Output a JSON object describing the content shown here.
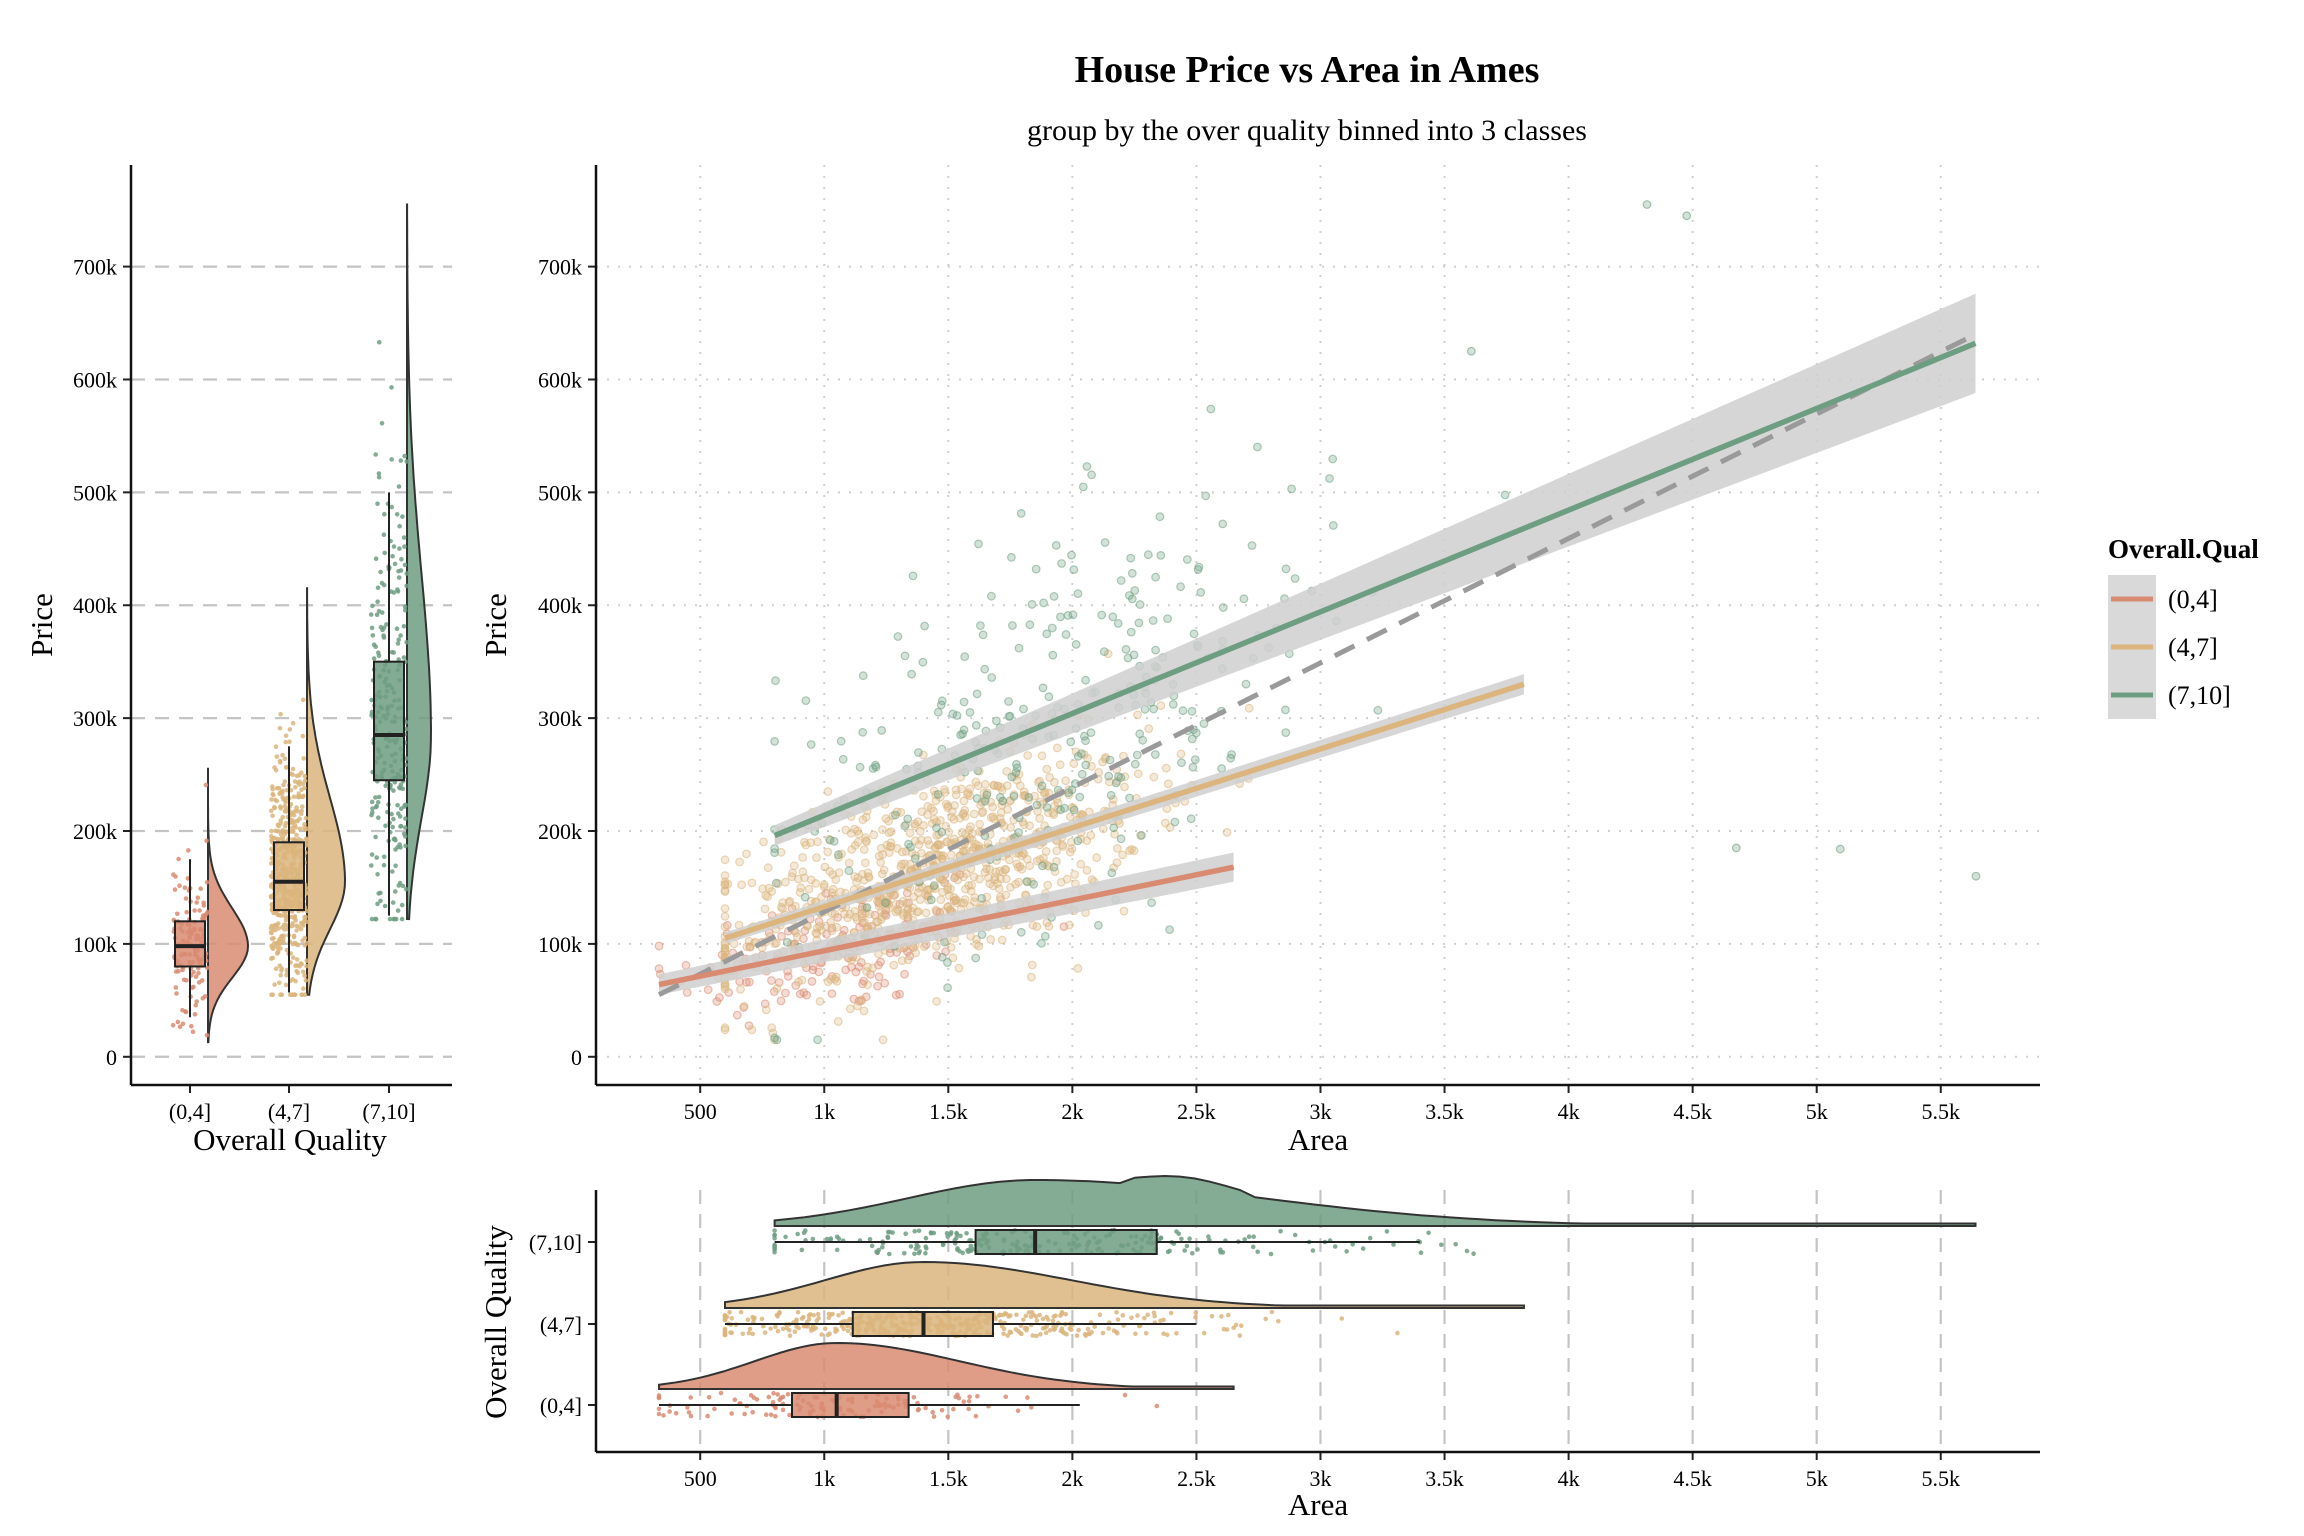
{
  "title": "House Price vs Area in Ames",
  "subtitle": "group by the over quality binned into 3 classes",
  "colors": {
    "(0,4]": "#d98b72",
    "(4,7]": "#dbb57d",
    "(7,10]": "#6e9e82",
    "overall_fit": "#9a9a9a",
    "ribbon": "#cfcfcf"
  },
  "legend": {
    "title": "Overall.Qual",
    "position": "right",
    "items": [
      "(0,4]",
      "(4,7]",
      "(7,10]"
    ]
  },
  "chart_data": [
    {
      "type": "scatter",
      "panel": "main",
      "xlabel": "Area",
      "ylabel": "Price",
      "xlim": [
        80,
        5900
      ],
      "ylim": [
        -25000,
        790000
      ],
      "x_ticks": [
        500,
        1000,
        1500,
        2000,
        2500,
        3000,
        3500,
        4000,
        4500,
        5000,
        5500
      ],
      "x_tick_labels": [
        "500",
        "1k",
        "1.5k",
        "2k",
        "2.5k",
        "3k",
        "3.5k",
        "4k",
        "4.5k",
        "5k",
        "5.5k"
      ],
      "y_ticks": [
        0,
        100000,
        200000,
        300000,
        400000,
        500000,
        600000,
        700000
      ],
      "y_tick_labels": [
        "0",
        "100k",
        "200k",
        "300k",
        "400k",
        "500k",
        "600k",
        "700k"
      ],
      "grid": true,
      "series": [
        {
          "name": "(0,4]",
          "cloud": {
            "x_center": 1050,
            "x_sd": 330,
            "y_center": 105000,
            "y_sd": 30000,
            "n": 160
          },
          "fit": {
            "x": [
              334,
              2650
            ],
            "y": [
              64000,
              168000
            ]
          }
        },
        {
          "name": "(4,7]",
          "cloud": {
            "x_center": 1450,
            "x_sd": 420,
            "y_center": 165000,
            "y_sd": 42000,
            "n": 900
          },
          "fit": {
            "x": [
              600,
              3820
            ],
            "y": [
              105000,
              330000
            ]
          }
        },
        {
          "name": "(7,10]",
          "cloud": {
            "x_center": 1950,
            "x_sd": 560,
            "y_center": 300000,
            "y_sd": 85000,
            "n": 320
          },
          "fit": {
            "x": [
              800,
              5640
            ],
            "y": [
              196000,
              632000
            ]
          },
          "outliers": [
            {
              "x": 4316,
              "y": 755000
            },
            {
              "x": 4476,
              "y": 745000
            },
            {
              "x": 5642,
              "y": 160000
            },
            {
              "x": 5095,
              "y": 184000
            },
            {
              "x": 4676,
              "y": 185000
            },
            {
              "x": 3608,
              "y": 625000
            }
          ]
        }
      ],
      "overall_fit": {
        "x": [
          334,
          5640
        ],
        "y": [
          55000,
          640000
        ]
      }
    },
    {
      "type": "box",
      "panel": "left",
      "xlabel": "Overall Quality",
      "ylabel": "Price",
      "categories": [
        "(0,4]",
        "(4,7]",
        "(7,10]"
      ],
      "boxes": [
        {
          "category": "(0,4]",
          "whisker_low": 35000,
          "q1": 80000,
          "median": 98000,
          "q3": 120000,
          "whisker_high": 175000,
          "min": 13000,
          "max": 256000
        },
        {
          "category": "(4,7]",
          "whisker_low": 57000,
          "q1": 130000,
          "median": 155000,
          "q3": 190000,
          "whisker_high": 275000,
          "min": 55000,
          "max": 415000
        },
        {
          "category": "(7,10]",
          "whisker_low": 125000,
          "q1": 245000,
          "median": 285000,
          "q3": 350000,
          "whisker_high": 500000,
          "min": 122000,
          "max": 755000
        }
      ],
      "y_ticks": [
        0,
        100000,
        200000,
        300000,
        400000,
        500000,
        600000,
        700000
      ],
      "y_tick_labels": [
        "0",
        "100k",
        "200k",
        "300k",
        "400k",
        "500k",
        "600k",
        "700k"
      ],
      "grid": true
    },
    {
      "type": "box",
      "panel": "bottom",
      "orientation": "horizontal",
      "xlabel": "Area",
      "ylabel": "Overall Quality",
      "categories": [
        "(0,4]",
        "(4,7]",
        "(7,10]"
      ],
      "boxes": [
        {
          "category": "(0,4]",
          "whisker_low": 334,
          "q1": 870,
          "median": 1050,
          "q3": 1340,
          "whisker_high": 2030,
          "min": 334,
          "max": 2650
        },
        {
          "category": "(4,7]",
          "whisker_low": 600,
          "q1": 1115,
          "median": 1400,
          "q3": 1680,
          "whisker_high": 2500,
          "min": 600,
          "max": 3820
        },
        {
          "category": "(7,10]",
          "whisker_low": 800,
          "q1": 1610,
          "median": 1850,
          "q3": 2340,
          "whisker_high": 3400,
          "min": 800,
          "max": 5640
        }
      ],
      "x_ticks": [
        500,
        1000,
        1500,
        2000,
        2500,
        3000,
        3500,
        4000,
        4500,
        5000,
        5500
      ],
      "x_tick_labels": [
        "500",
        "1k",
        "1.5k",
        "2k",
        "2.5k",
        "3k",
        "3.5k",
        "4k",
        "4.5k",
        "5k",
        "5.5k"
      ],
      "grid": true
    }
  ]
}
